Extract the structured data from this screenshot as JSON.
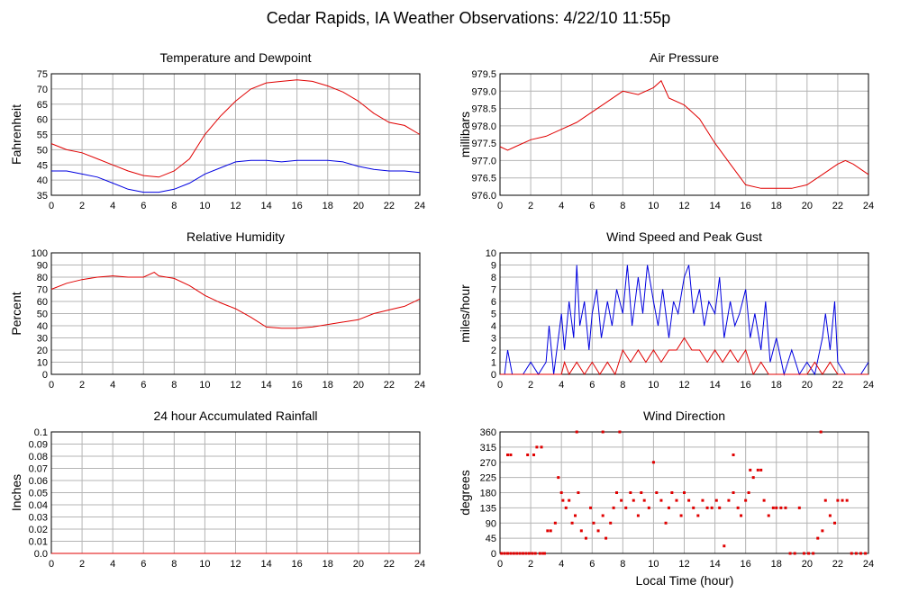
{
  "page": {
    "title": "Cedar Rapids, IA Weather Observations: 4/22/10 11:55p",
    "xlabel": "Local Time (hour)"
  },
  "chart_data": [
    {
      "id": "temp",
      "type": "line",
      "title": "Temperature and Dewpoint",
      "ylabel": "Fahrenheit",
      "xlabel": "",
      "xlim": [
        0,
        24
      ],
      "ylim": [
        35,
        75
      ],
      "xticks": [
        0,
        2,
        4,
        6,
        8,
        10,
        12,
        14,
        16,
        18,
        20,
        22,
        24
      ],
      "yticks": [
        35,
        40,
        45,
        50,
        55,
        60,
        65,
        70,
        75
      ],
      "ytick_labels": [
        "35",
        "40",
        "45",
        "50",
        "55",
        "60",
        "65",
        "70",
        "75"
      ],
      "grid": true,
      "series": [
        {
          "color": "#e00000",
          "x": [
            0,
            1,
            2,
            3,
            4,
            5,
            6,
            7,
            8,
            9,
            10,
            11,
            12,
            13,
            14,
            15,
            16,
            17,
            18,
            19,
            20,
            21,
            22,
            23,
            24
          ],
          "y": [
            52,
            50,
            49,
            47,
            45,
            43,
            41.5,
            41,
            43,
            47,
            55,
            61,
            66,
            70,
            72,
            72.5,
            73,
            72.5,
            71,
            69,
            66,
            62,
            59,
            58,
            55
          ]
        },
        {
          "color": "#0000e0",
          "x": [
            0,
            1,
            2,
            3,
            4,
            5,
            6,
            7,
            8,
            9,
            10,
            11,
            12,
            13,
            14,
            15,
            16,
            17,
            18,
            19,
            20,
            21,
            22,
            23,
            24
          ],
          "y": [
            43,
            43,
            42,
            41,
            39,
            37,
            36,
            36,
            37,
            39,
            42,
            44,
            46,
            46.5,
            46.5,
            46,
            46.5,
            46.5,
            46.5,
            46,
            44.5,
            43.5,
            43,
            43,
            42.5
          ]
        }
      ]
    },
    {
      "id": "pressure",
      "type": "line",
      "title": "Air Pressure",
      "ylabel": "millibars",
      "xlabel": "",
      "xlim": [
        0,
        24
      ],
      "ylim": [
        976.0,
        979.5
      ],
      "xticks": [
        0,
        2,
        4,
        6,
        8,
        10,
        12,
        14,
        16,
        18,
        20,
        22,
        24
      ],
      "yticks": [
        976.0,
        976.5,
        977.0,
        977.5,
        978.0,
        978.5,
        979.0,
        979.5
      ],
      "ytick_labels": [
        "976.0",
        "976.5",
        "977.0",
        "977.5",
        "978.0",
        "978.5",
        "979.0",
        "979.5"
      ],
      "grid": true,
      "series": [
        {
          "color": "#e00000",
          "x": [
            0,
            0.5,
            1,
            2,
            3,
            4,
            5,
            6,
            7,
            8,
            9,
            10,
            10.5,
            11,
            12,
            13,
            14,
            15,
            16,
            17,
            18,
            19,
            20,
            21,
            22,
            22.5,
            23,
            24
          ],
          "y": [
            977.4,
            977.3,
            977.4,
            977.6,
            977.7,
            977.9,
            978.1,
            978.4,
            978.7,
            979.0,
            978.9,
            979.1,
            979.3,
            978.8,
            978.6,
            978.2,
            977.5,
            976.9,
            976.3,
            976.2,
            976.2,
            976.2,
            976.3,
            976.6,
            976.9,
            977.0,
            976.9,
            976.6
          ]
        }
      ]
    },
    {
      "id": "humidity",
      "type": "line",
      "title": "Relative Humidity",
      "ylabel": "Percent",
      "xlabel": "",
      "xlim": [
        0,
        24
      ],
      "ylim": [
        0,
        100
      ],
      "xticks": [
        0,
        2,
        4,
        6,
        8,
        10,
        12,
        14,
        16,
        18,
        20,
        22,
        24
      ],
      "yticks": [
        0,
        10,
        20,
        30,
        40,
        50,
        60,
        70,
        80,
        90,
        100
      ],
      "ytick_labels": [
        "0",
        "10",
        "20",
        "30",
        "40",
        "50",
        "60",
        "70",
        "80",
        "90",
        "100"
      ],
      "grid": true,
      "series": [
        {
          "color": "#e00000",
          "x": [
            0,
            1,
            2,
            3,
            4,
            5,
            6,
            6.7,
            7,
            8,
            9,
            10,
            11,
            12,
            13,
            14,
            15,
            16,
            17,
            18,
            19,
            20,
            21,
            22,
            23,
            24
          ],
          "y": [
            70,
            75,
            78,
            80,
            81,
            80,
            80,
            84,
            81,
            79,
            73,
            65,
            59,
            54,
            47,
            39,
            38,
            38,
            39,
            41,
            43,
            45,
            50,
            53,
            56,
            62
          ]
        }
      ]
    },
    {
      "id": "wind",
      "type": "line",
      "title": "Wind Speed and Peak Gust",
      "ylabel": "miles/hour",
      "xlabel": "",
      "xlim": [
        0,
        24
      ],
      "ylim": [
        0,
        10
      ],
      "xticks": [
        0,
        2,
        4,
        6,
        8,
        10,
        12,
        14,
        16,
        18,
        20,
        22,
        24
      ],
      "yticks": [
        0,
        1,
        2,
        3,
        4,
        5,
        6,
        7,
        8,
        9,
        10
      ],
      "ytick_labels": [
        "0",
        "1",
        "2",
        "3",
        "4",
        "5",
        "6",
        "7",
        "8",
        "9",
        "10"
      ],
      "grid": true,
      "series": [
        {
          "color": "#0000e0",
          "x": [
            0,
            0.3,
            0.5,
            0.8,
            1,
            1.5,
            2,
            2.5,
            3,
            3.2,
            3.5,
            3.8,
            4,
            4.2,
            4.5,
            4.8,
            5,
            5.2,
            5.5,
            5.8,
            6,
            6.3,
            6.6,
            7,
            7.3,
            7.6,
            8,
            8.3,
            8.6,
            9,
            9.3,
            9.6,
            10,
            10.3,
            10.6,
            11,
            11.3,
            11.6,
            12,
            12.3,
            12.6,
            13,
            13.3,
            13.6,
            14,
            14.3,
            14.6,
            15,
            15.3,
            15.6,
            16,
            16.3,
            16.6,
            17,
            17.3,
            17.6,
            18,
            18.5,
            19,
            19.5,
            20,
            20.5,
            21,
            21.2,
            21.5,
            21.8,
            22,
            22.5,
            23,
            23.5,
            24
          ],
          "y": [
            0,
            0,
            2,
            0,
            0,
            0,
            1,
            0,
            1,
            4,
            0,
            3,
            5,
            2,
            6,
            3,
            9,
            4,
            6,
            2,
            5,
            7,
            3,
            6,
            4,
            7,
            5,
            9,
            4,
            8,
            5,
            9,
            6,
            4,
            7,
            3,
            6,
            5,
            8,
            9,
            5,
            7,
            4,
            6,
            5,
            8,
            3,
            6,
            4,
            5,
            7,
            3,
            5,
            2,
            6,
            1,
            3,
            0,
            2,
            0,
            1,
            0,
            3,
            5,
            2,
            6,
            1,
            0,
            0,
            0,
            1
          ]
        },
        {
          "color": "#e00000",
          "x": [
            0,
            4,
            4.2,
            4.5,
            5,
            5.5,
            6,
            6.5,
            7,
            7.5,
            8,
            8.5,
            9,
            9.5,
            10,
            10.5,
            11,
            11.5,
            12,
            12.5,
            13,
            13.5,
            14,
            14.5,
            15,
            15.5,
            16,
            16.5,
            17,
            17.5,
            18,
            20,
            20.5,
            21,
            21.5,
            22,
            24
          ],
          "y": [
            0,
            0,
            1,
            0,
            1,
            0,
            1,
            0,
            1,
            0,
            2,
            1,
            2,
            1,
            2,
            1,
            2,
            2,
            3,
            2,
            2,
            1,
            2,
            1,
            2,
            1,
            2,
            0,
            1,
            0,
            0,
            0,
            1,
            0,
            1,
            0,
            0
          ]
        }
      ]
    },
    {
      "id": "rain",
      "type": "line",
      "title": "24 hour Accumulated Rainfall",
      "ylabel": "Inches",
      "xlabel": "",
      "xlim": [
        0,
        24
      ],
      "ylim": [
        0,
        0.1
      ],
      "xticks": [
        0,
        2,
        4,
        6,
        8,
        10,
        12,
        14,
        16,
        18,
        20,
        22,
        24
      ],
      "yticks": [
        0,
        0.01,
        0.02,
        0.03,
        0.04,
        0.05,
        0.06,
        0.07,
        0.08,
        0.09,
        0.1
      ],
      "ytick_labels": [
        "0.0",
        "0.01",
        "0.02",
        "0.03",
        "0.04",
        "0.05",
        "0.06",
        "0.07",
        "0.08",
        "0.09",
        "0.1"
      ],
      "grid": true,
      "series": [
        {
          "color": "#e00000",
          "x": [
            0,
            24
          ],
          "y": [
            0,
            0
          ]
        }
      ]
    },
    {
      "id": "direction",
      "type": "scatter",
      "title": "Wind Direction",
      "ylabel": "degrees",
      "xlabel": "Local Time (hour)",
      "xlim": [
        0,
        24
      ],
      "ylim": [
        0,
        360
      ],
      "xticks": [
        0,
        2,
        4,
        6,
        8,
        10,
        12,
        14,
        16,
        18,
        20,
        22,
        24
      ],
      "yticks": [
        0,
        45,
        90,
        135,
        180,
        225,
        270,
        315,
        360
      ],
      "ytick_labels": [
        "0",
        "45",
        "90",
        "135",
        "180",
        "225",
        "270",
        "315",
        "360"
      ],
      "grid": true,
      "series": [
        {
          "color": "#e00000",
          "x": [
            0.1,
            0.3,
            0.5,
            0.7,
            0.9,
            1.1,
            1.3,
            1.5,
            1.7,
            1.9,
            2.1,
            2.3,
            2.6,
            2.8,
            0.5,
            0.7,
            1.8,
            2.2,
            2.4,
            2.7,
            2.9,
            3.1,
            3.3,
            3.6,
            3.8,
            4.0,
            4.1,
            4.3,
            4.5,
            4.7,
            4.9,
            5.1,
            5.3,
            5.6,
            5.9,
            6.1,
            6.4,
            6.7,
            6.9,
            7.2,
            7.4,
            7.6,
            7.9,
            8.2,
            8.5,
            8.7,
            9.0,
            9.2,
            9.4,
            9.7,
            10.0,
            10.2,
            10.5,
            10.8,
            11.0,
            11.2,
            11.5,
            11.8,
            12.0,
            12.3,
            12.6,
            12.9,
            13.2,
            13.5,
            13.8,
            14.1,
            14.3,
            14.6,
            14.9,
            15.2,
            15.5,
            15.7,
            16.0,
            16.2,
            16.5,
            16.8,
            17.0,
            17.2,
            17.5,
            17.8,
            18.0,
            18.3,
            18.6,
            18.9,
            19.2,
            19.5,
            19.8,
            20.1,
            20.4,
            20.7,
            21.0,
            21.2,
            21.5,
            21.8,
            22.0,
            22.3,
            22.6,
            22.9,
            23.2,
            23.5,
            23.8,
            5.0,
            6.7,
            7.8,
            15.2,
            16.3,
            20.9
          ],
          "y": [
            0,
            0,
            0,
            0,
            0,
            0,
            0,
            0,
            0,
            0,
            0,
            0,
            0,
            0,
            292,
            292,
            292,
            292,
            315,
            315,
            0,
            67,
            67,
            90,
            225,
            180,
            157,
            135,
            157,
            90,
            112,
            180,
            67,
            45,
            135,
            90,
            67,
            112,
            45,
            90,
            135,
            180,
            157,
            135,
            180,
            157,
            112,
            180,
            157,
            135,
            270,
            180,
            157,
            90,
            135,
            180,
            157,
            112,
            180,
            157,
            135,
            112,
            157,
            135,
            135,
            157,
            135,
            22,
            157,
            180,
            135,
            112,
            157,
            180,
            225,
            247,
            247,
            157,
            112,
            135,
            135,
            135,
            135,
            0,
            0,
            135,
            0,
            0,
            0,
            45,
            67,
            157,
            112,
            90,
            157,
            157,
            157,
            0,
            0,
            0,
            0,
            360,
            360,
            360,
            292,
            247,
            360
          ]
        }
      ]
    }
  ]
}
